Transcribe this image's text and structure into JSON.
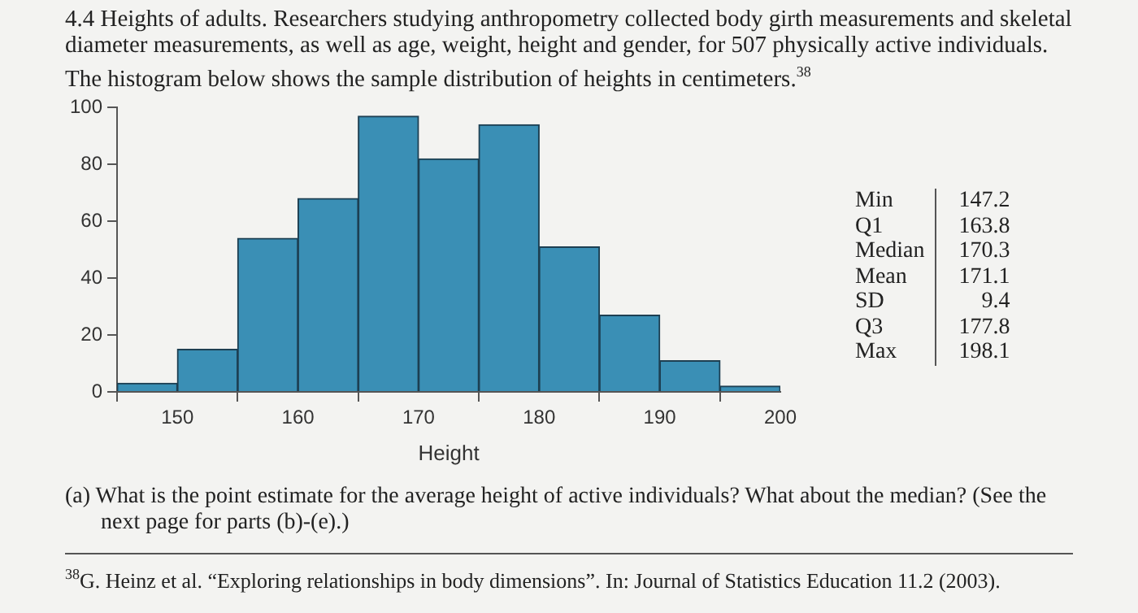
{
  "chart_data": {
    "type": "histogram",
    "title": "4.4 Heights of adults. Researchers studying anthropometry collected body girth measurements and skeletal diameter measurements, as well as age, weight, height and gender, for 507 physically active individuals. The histogram below shows the sample distribution of heights in centimeters.$^{38}$",
    "xlabel": "Height",
    "bins": [
      145,
      150,
      155,
      160,
      165,
      170,
      175,
      180,
      185,
      190,
      195,
      200
    ],
    "values": [
      3,
      15,
      54,
      68,
      97,
      82,
      94,
      51,
      27,
      11,
      2
    ],
    "color": "#3a8fb5",
    "xlim": [
      145,
      200
    ],
    "xticks": [
      150,
      160,
      170,
      180,
      190,
      200
    ],
    "ylim": [
      0,
      100
    ],
    "yticks": [
      0,
      20,
      40,
      60,
      80,
      100
    ],
    "grid": false,
    "legend": false,
    "annotations": [
      "Min 147.2",
      "Q1 163.8",
      "Median 170.3",
      "Mean 171.1",
      "SD 9.4",
      "Q3 177.8",
      "Max 198.1",
      "(a) What is the point estimate for the average height of active individuals? What about the median? (See the next page for parts (b)-(e).)",
      "$^{38}$G. Heinz et al. “Exploring relationships in body dimensions”. In: Journal of Statistics Education 11.2 (2003)."
    ]
  }
}
